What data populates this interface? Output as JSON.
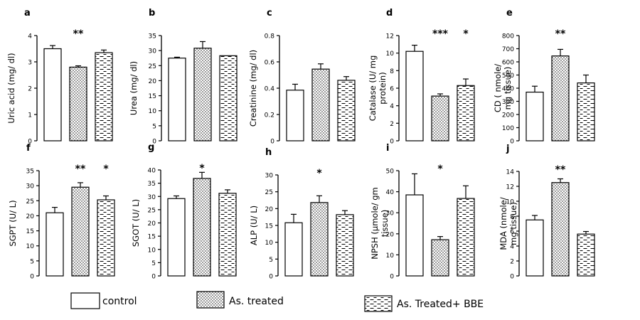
{
  "legend": [
    {
      "label": "control",
      "pattern": "control"
    },
    {
      "label": "As. treated",
      "pattern": "dots"
    },
    {
      "label": "As. Treated+ BBE",
      "pattern": "dashes"
    }
  ],
  "colors": {
    "bar_stroke": "#000000",
    "background": "#ffffff",
    "dot_fill": "#555555"
  },
  "chart_data": [
    {
      "type": "bar",
      "panel": "a",
      "ylabel": [
        "Uric acid (mg/ dl)"
      ],
      "ylim": [
        0,
        4
      ],
      "yticks": [
        "0",
        "1",
        "2",
        "3",
        "4"
      ],
      "categories": [
        "control",
        "As. treated",
        "As. Treated+ BBE"
      ],
      "values": [
        3.5,
        2.8,
        3.35
      ],
      "errors": [
        0.12,
        0.05,
        0.1
      ],
      "sig": [
        "",
        "**",
        ""
      ]
    },
    {
      "type": "bar",
      "panel": "b",
      "ylabel": [
        "Urea (mg/ dl)"
      ],
      "ylim": [
        0,
        35
      ],
      "yticks": [
        "0",
        "5",
        "10",
        "15",
        "20",
        "25",
        "30",
        "35"
      ],
      "categories": [
        "control",
        "As. treated",
        "As. Treated+ BBE"
      ],
      "values": [
        27.5,
        30.8,
        28.3
      ],
      "errors": [
        0.3,
        2.2,
        0
      ],
      "sig": [
        "",
        "",
        ""
      ]
    },
    {
      "type": "bar",
      "panel": "c",
      "ylabel": [
        "Creatinine (mg/ dl)"
      ],
      "ylim": [
        0,
        0.8
      ],
      "yticks": [
        "0",
        "0.2",
        "0.4",
        "0.6",
        "0.8"
      ],
      "categories": [
        "control",
        "As. treated",
        "As. Treated+ BBE"
      ],
      "values": [
        0.385,
        0.545,
        0.46
      ],
      "errors": [
        0.045,
        0.04,
        0.028
      ],
      "sig": [
        "",
        "",
        ""
      ]
    },
    {
      "type": "bar",
      "panel": "d",
      "ylabel": [
        "Catalase (U/ mg",
        "protein)"
      ],
      "ylim": [
        0,
        12
      ],
      "yticks": [
        "0",
        "2",
        "4",
        "6",
        "8",
        "10",
        "12"
      ],
      "categories": [
        "control",
        "As. treated",
        "As. Treated+ BBE"
      ],
      "values": [
        10.2,
        5.1,
        6.3
      ],
      "errors": [
        0.7,
        0.25,
        0.75
      ],
      "sig": [
        "",
        "***",
        "*"
      ]
    },
    {
      "type": "bar",
      "panel": "e",
      "ylabel": [
        "CD ( nmole/",
        "mg tissue)"
      ],
      "ylim": [
        0,
        800
      ],
      "yticks": [
        "0",
        "100",
        "200",
        "300",
        "400",
        "500",
        "600",
        "700",
        "800"
      ],
      "categories": [
        "control",
        "As. treated",
        "As. Treated+ BBE"
      ],
      "values": [
        370,
        645,
        440
      ],
      "errors": [
        45,
        50,
        60
      ],
      "sig": [
        "",
        "**",
        ""
      ]
    },
    {
      "type": "bar",
      "panel": "f",
      "ylabel": [
        "SGPT (U/ L)"
      ],
      "ylim": [
        0,
        35
      ],
      "yticks": [
        "0",
        "5",
        "10",
        "15",
        "20",
        "25",
        "30",
        "35"
      ],
      "categories": [
        "control",
        "As. treated",
        "As. Treated+ BBE"
      ],
      "values": [
        21,
        29.5,
        25.3
      ],
      "errors": [
        1.8,
        1.5,
        1.3
      ],
      "sig": [
        "",
        "**",
        "*"
      ]
    },
    {
      "type": "bar",
      "panel": "g",
      "ylabel": [
        "SGOT (U/ L)"
      ],
      "ylim": [
        0,
        40
      ],
      "yticks": [
        "0",
        "5",
        "10",
        "15",
        "20",
        "25",
        "30",
        "35",
        "40"
      ],
      "categories": [
        "control",
        "As. treated",
        "As. Treated+ BBE"
      ],
      "values": [
        29.2,
        36.8,
        31.2
      ],
      "errors": [
        1.0,
        2.3,
        1.3
      ],
      "sig": [
        "",
        "*",
        ""
      ]
    },
    {
      "type": "bar",
      "panel": "h",
      "ylabel": [
        "ALP (U/ L)"
      ],
      "ylim": [
        0,
        30
      ],
      "yticks": [
        "0",
        "5",
        "10",
        "15",
        "20",
        "25",
        "30"
      ],
      "categories": [
        "control",
        "As. treated",
        "As. Treated+ BBE"
      ],
      "values": [
        15.8,
        21.8,
        18.2
      ],
      "errors": [
        2.5,
        2.0,
        1.2
      ],
      "sig": [
        "",
        "*",
        ""
      ]
    },
    {
      "type": "bar",
      "panel": "i",
      "ylabel": [
        "NPSH (µmole/ gm",
        "tissue)"
      ],
      "ylim": [
        0,
        50
      ],
      "yticks": [
        "0",
        "10",
        "20",
        "30",
        "40",
        "50"
      ],
      "categories": [
        "control",
        "As. treated",
        "As. Treated+ BBE"
      ],
      "values": [
        38.5,
        17.2,
        36.8
      ],
      "errors": [
        10,
        1.5,
        6
      ],
      "sig": [
        "",
        "*",
        ""
      ]
    },
    {
      "type": "bar",
      "panel": "j",
      "ylabel": [
        "MDA (nmole/",
        "mg tissue)"
      ],
      "ylim": [
        0,
        14
      ],
      "yticks": [
        "0",
        "2",
        "4",
        "6",
        "8",
        "10",
        "12",
        "14"
      ],
      "categories": [
        "control",
        "As. treated",
        "As. Treated+ BBE"
      ],
      "values": [
        7.5,
        12.5,
        5.6
      ],
      "errors": [
        0.6,
        0.5,
        0.35
      ],
      "sig": [
        "",
        "**",
        ""
      ]
    }
  ]
}
